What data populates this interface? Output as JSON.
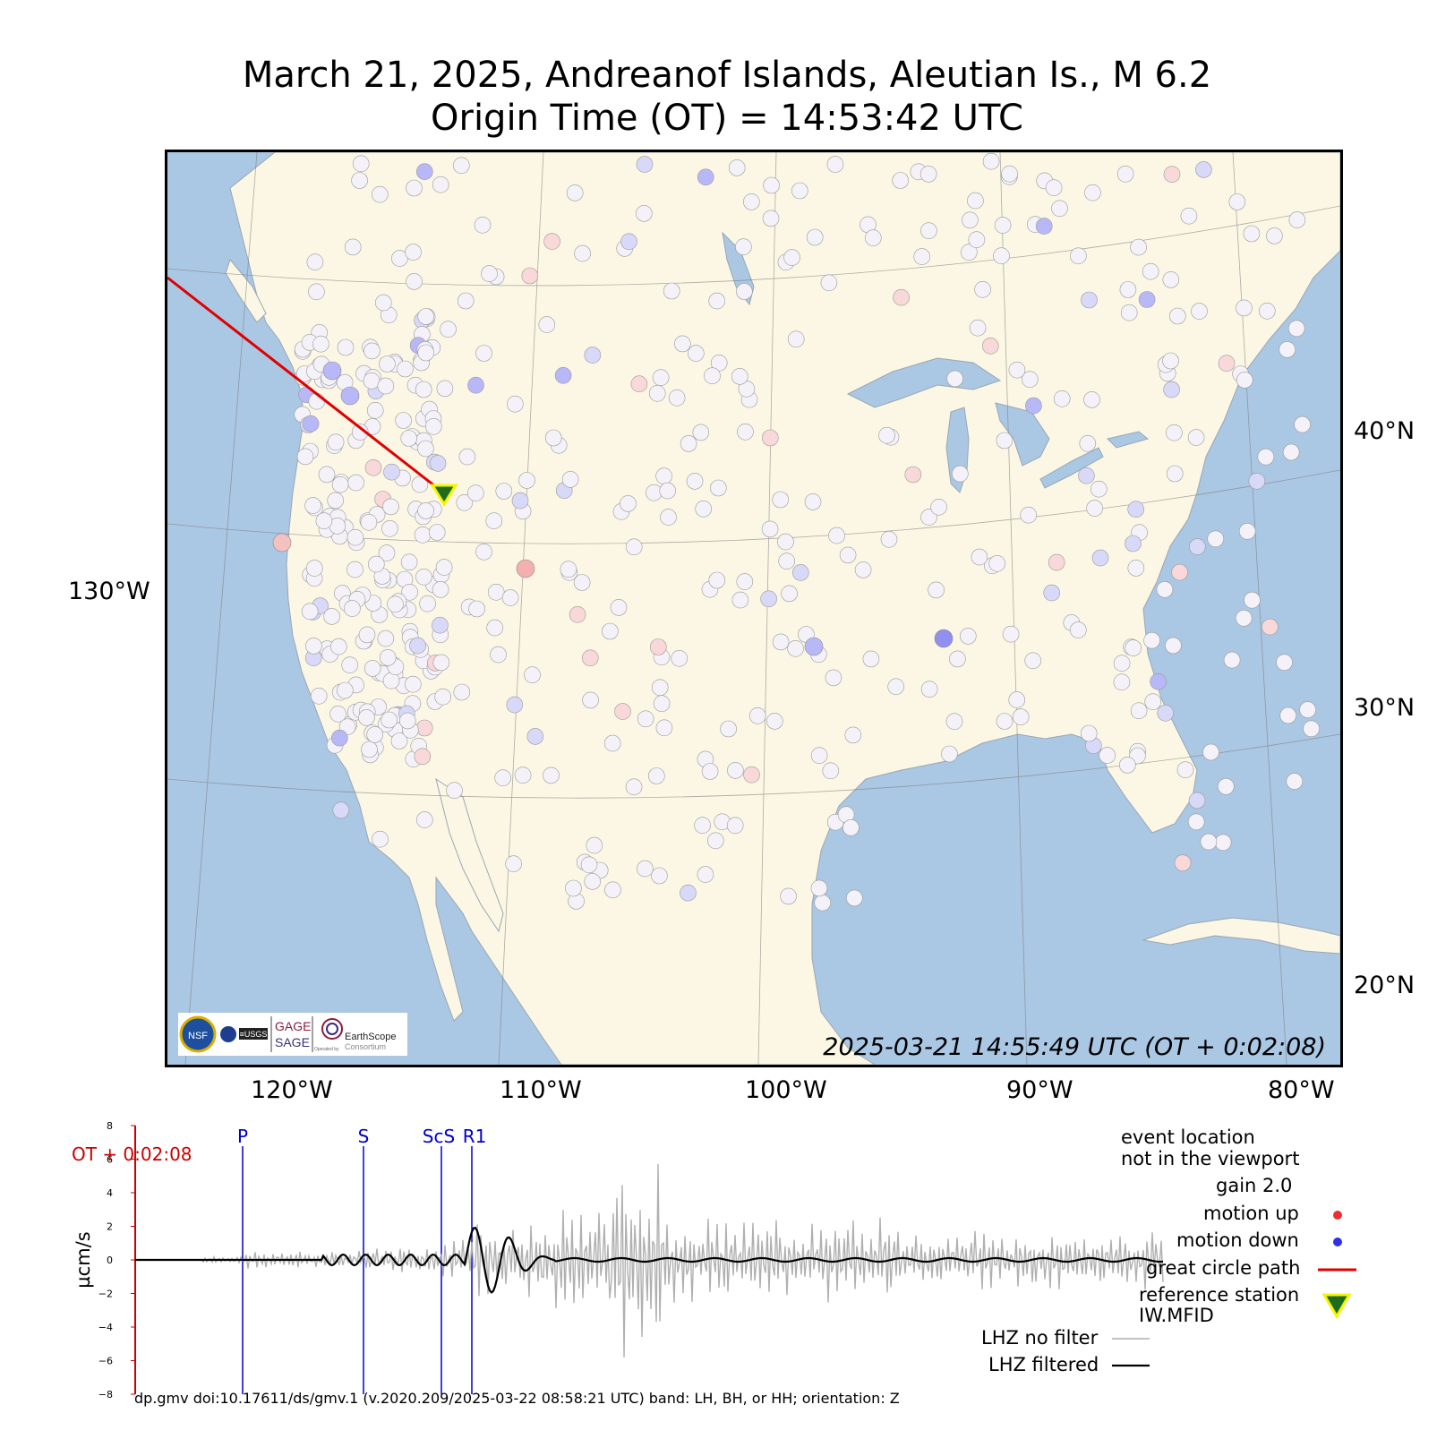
{
  "title": {
    "line1": "March 21, 2025, Andreanof Islands, Aleutian Is., M 6.2",
    "line2": "Origin Time (OT) = 14:53:42 UTC"
  },
  "map": {
    "timestamp": "2025-03-21 14:55:49 UTC (OT + 0:02:08)",
    "lat_labels": [
      "40°N",
      "30°N",
      "20°N"
    ],
    "lon_labels": [
      "120°W",
      "110°W",
      "100°W",
      "90°W",
      "80°W"
    ],
    "lon_label_left": "130°W",
    "colors": {
      "ocean": "#aac7e3",
      "land": "#fbf7e4",
      "path": "#e00000",
      "station": "#1d6b1d",
      "station_outline": "#f5f500"
    },
    "logos": {
      "nsf": "NSF",
      "nasa": "NASA",
      "usgs": "≡USGS",
      "gage": "GAGE",
      "sage": "SAGE",
      "earthscope": "EarthScope",
      "consortium": "Consortium",
      "operated_by": "Operated by"
    }
  },
  "seismogram": {
    "ylabel": "µcm/s",
    "yticks": [
      "8",
      "6",
      "4",
      "2",
      "0",
      "−2",
      "−4",
      "−6",
      "−8"
    ],
    "ot_label": "OT + 0:02:08",
    "phases": [
      "P",
      "S",
      "ScS",
      "R1"
    ],
    "footer": "dp.gmv doi:10.17611/ds/gmv.1 (v.2020.209/2025-03-22 08:58:21 UTC) band: LH, BH, or HH; orientation: Z"
  },
  "legend": {
    "event_line1": "event location",
    "event_line2": "not in the viewport",
    "gain": "gain  2.0",
    "motion_up": "motion up",
    "motion_down": "motion down",
    "great_circle": "great circle path",
    "ref_line1": "reference station",
    "ref_line2": "IW.MFID",
    "lhz_nofilter": "LHZ no filter",
    "lhz_filtered": "LHZ filtered",
    "colors": {
      "up": "#e83030",
      "down": "#3030e8",
      "path": "#e00000",
      "nofilter": "#b0b0b0",
      "filtered": "#000000"
    }
  }
}
